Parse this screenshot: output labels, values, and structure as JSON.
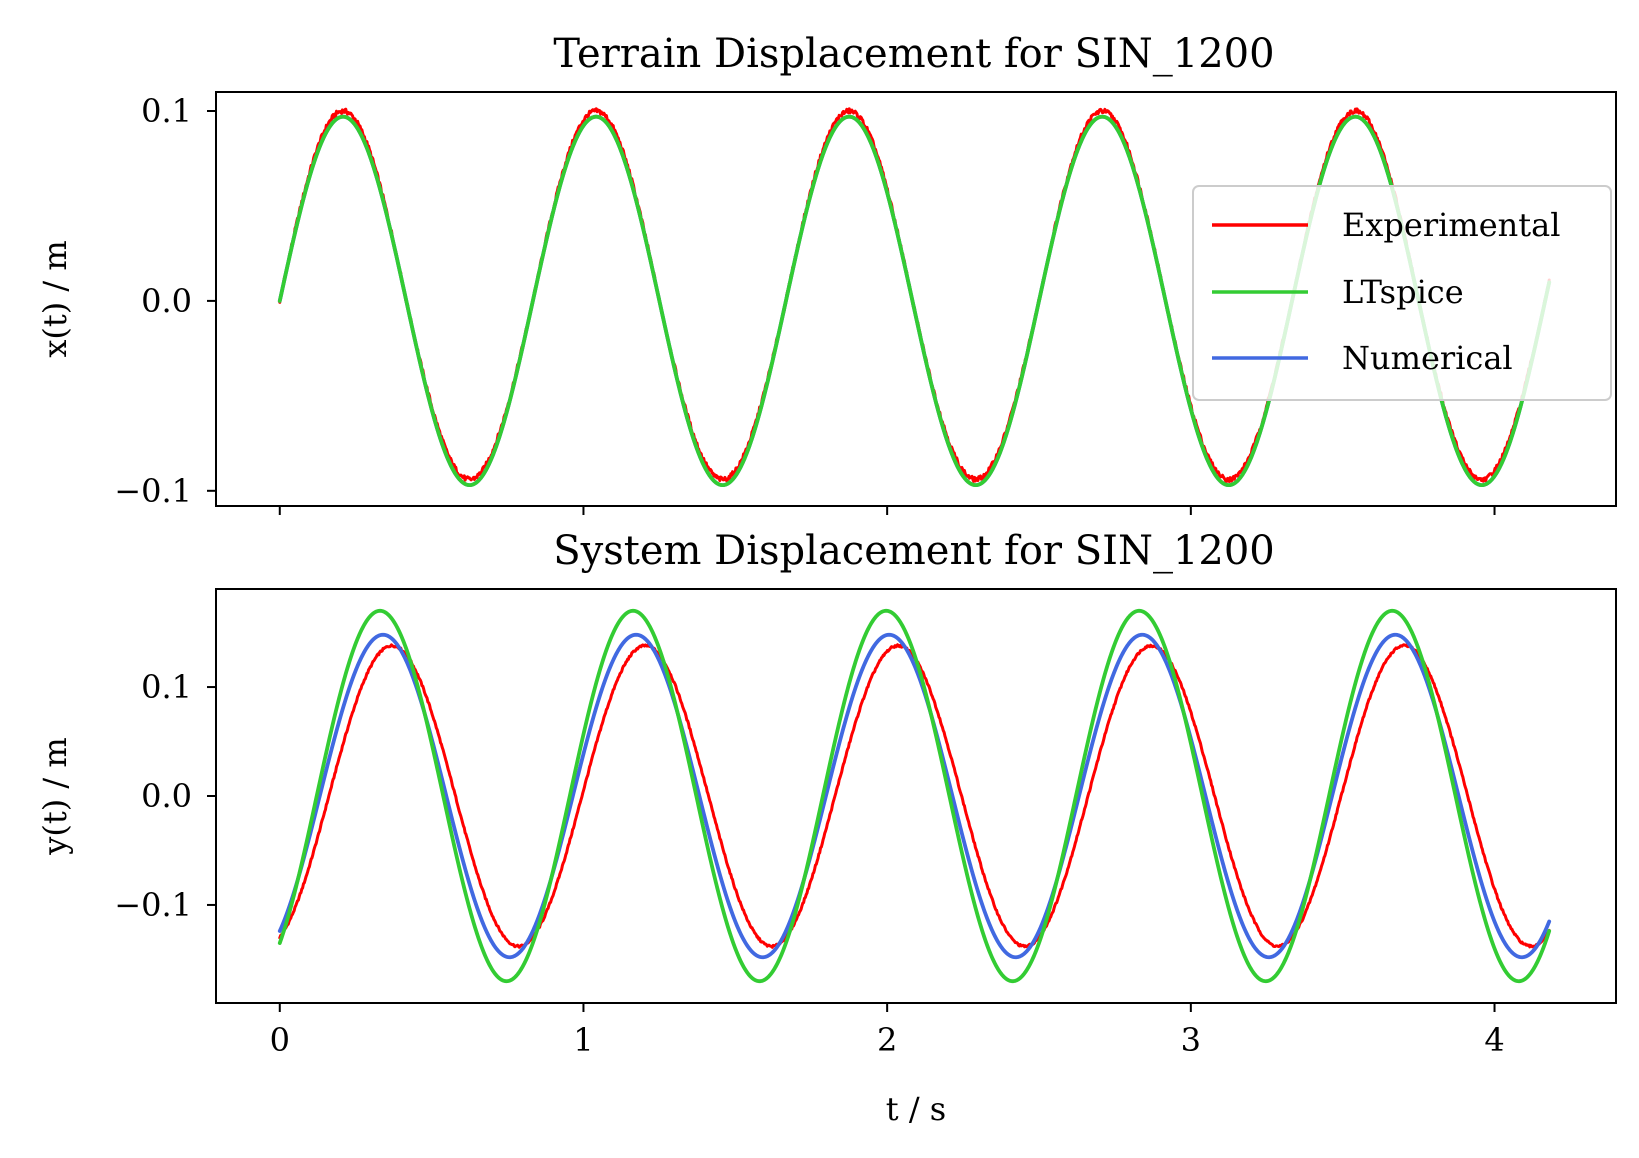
{
  "chart_data": [
    {
      "type": "line",
      "title": "Terrain Displacement for SIN_1200",
      "xlabel": "",
      "ylabel": "x(t) / m",
      "xlim": [
        -0.21,
        4.4
      ],
      "ylim": [
        -0.108,
        0.11
      ],
      "x_ticks": [
        0,
        1,
        2,
        3,
        4
      ],
      "x_tick_labels_visible": false,
      "y_ticks": [
        -0.1,
        0.0,
        0.1
      ],
      "y_tick_labels": [
        "−0.1",
        "0.0",
        "0.1"
      ],
      "grid": false,
      "legend": "right",
      "waveform": "sine",
      "t_range": [
        0,
        4.18
      ],
      "frequency_hz": 1.2,
      "series": [
        {
          "name": "Experimental",
          "color": "#ff0000",
          "amplitude_pos": 0.1,
          "amplitude_neg": 0.094,
          "phase_shift_s": 0.0
        },
        {
          "name": "LTspice",
          "color": "#33cc33",
          "amplitude_pos": 0.097,
          "amplitude_neg": 0.097,
          "phase_shift_s": 0.0
        },
        {
          "name": "Numerical",
          "color": "#4169e1",
          "amplitude_pos": 0.097,
          "amplitude_neg": 0.097,
          "phase_shift_s": 0.0
        }
      ]
    },
    {
      "type": "line",
      "title": "System Displacement for SIN_1200",
      "xlabel": "t / s",
      "ylabel": "y(t) / m",
      "xlim": [
        -0.21,
        4.4
      ],
      "ylim": [
        -0.19,
        0.19
      ],
      "x_ticks": [
        0,
        1,
        2,
        3,
        4
      ],
      "x_tick_labels": [
        "0",
        "1",
        "2",
        "3",
        "4"
      ],
      "y_ticks": [
        -0.1,
        0.0,
        0.1
      ],
      "y_tick_labels": [
        "−0.1",
        "0.0",
        "0.1"
      ],
      "grid": false,
      "waveform": "sine",
      "t_range": [
        0,
        4.18
      ],
      "frequency_hz": 1.2,
      "series": [
        {
          "name": "Experimental",
          "color": "#ff0000",
          "amplitude": 0.138,
          "peak_time_s": 0.37
        },
        {
          "name": "LTspice",
          "color": "#33cc33",
          "amplitude": 0.17,
          "peak_time_s": 0.33
        },
        {
          "name": "Numerical",
          "color": "#4169e1",
          "amplitude": 0.148,
          "peak_time_s": 0.34
        }
      ]
    }
  ]
}
